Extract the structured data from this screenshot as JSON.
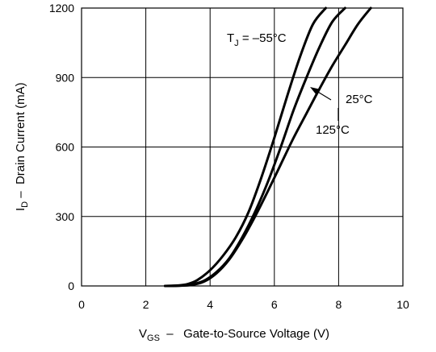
{
  "chart_data": {
    "type": "line",
    "title": "",
    "xlabel": {
      "main": "V",
      "sub": "GS",
      "rest": "  –   Gate-to-Source Voltage (V)"
    },
    "ylabel": {
      "main": "I",
      "sub": "D",
      "rest": " –  Drain Current (mA)"
    },
    "xlim": [
      0,
      10
    ],
    "ylim": [
      0,
      1200
    ],
    "xticks": [
      0,
      2,
      4,
      6,
      8,
      10
    ],
    "yticks": [
      0,
      300,
      600,
      900,
      1200
    ],
    "grid": true,
    "series": [
      {
        "name": "TJ = –55°C",
        "x": [
          2.6,
          3.0,
          3.3,
          3.6,
          4.0,
          4.4,
          4.8,
          5.2,
          5.6,
          6.0,
          6.4,
          6.8,
          7.2,
          7.6
        ],
        "y": [
          0,
          2,
          8,
          25,
          68,
          130,
          210,
          320,
          470,
          640,
          820,
          990,
          1130,
          1200
        ]
      },
      {
        "name": "25°C",
        "x": [
          2.6,
          3.0,
          3.4,
          3.8,
          4.2,
          4.6,
          5.0,
          5.4,
          5.8,
          6.2,
          6.6,
          7.0,
          7.4,
          7.8,
          8.2
        ],
        "y": [
          0,
          1,
          6,
          22,
          60,
          120,
          210,
          320,
          450,
          600,
          760,
          900,
          1030,
          1140,
          1200
        ]
      },
      {
        "name": "125°C",
        "x": [
          2.6,
          3.0,
          3.4,
          3.8,
          4.2,
          4.6,
          5.0,
          5.4,
          5.8,
          6.2,
          6.6,
          7.0,
          7.4,
          7.8,
          8.2,
          8.6,
          9.0
        ],
        "y": [
          0,
          1,
          4,
          18,
          55,
          115,
          200,
          300,
          410,
          525,
          640,
          745,
          850,
          950,
          1040,
          1130,
          1200
        ]
      }
    ],
    "annotations": [
      {
        "id": "tj",
        "main": "T",
        "sub": "J",
        "rest": " = –55°C"
      },
      {
        "id": "t25",
        "text": "25°C"
      },
      {
        "id": "t125",
        "text": "125°C"
      }
    ]
  }
}
